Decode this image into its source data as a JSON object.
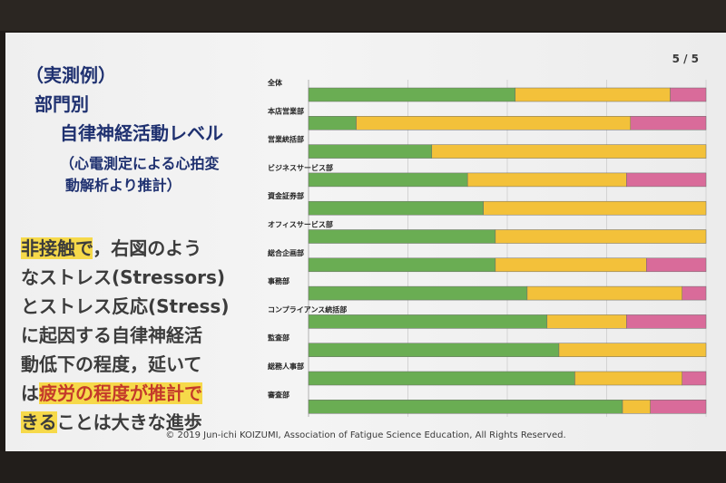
{
  "slide": {
    "page_number": "5 / 5",
    "title_lines": [
      "（実測例）",
      "部門別",
      "自律神経活動レベル",
      "（心電測定による心拍変",
      "動解析より推計）"
    ],
    "body_lines": [
      {
        "a": "非接触で",
        "b": "，右図のよう"
      },
      {
        "a": "なストレス(Stressors)"
      },
      {
        "a": "とストレス反応(Stress)"
      },
      {
        "a": "に起因する自律神経活"
      },
      {
        "a": "動低下の程度，延いて"
      },
      {
        "a": "は",
        "b": "疲労の程度が推計で"
      },
      {
        "a": "きる",
        "b": "ことは大きな進歩"
      }
    ],
    "copyright": "© 2019 Jun-ichi KOIZUMI, Association of Fatigue Science Education, All Rights Reserved."
  },
  "colors": {
    "green": "#6aad53",
    "yellow": "#f3c13a",
    "pink": "#d96b9a"
  },
  "chart_data": {
    "type": "bar",
    "orientation": "horizontal-stacked-100",
    "categories": [
      "全体",
      "本店営業部",
      "営業統括部",
      "ビジネスサービス部",
      "資金証券部",
      "オフィスサービス部",
      "総合企画部",
      "事務部",
      "コンプライアンス統括部",
      "監査部",
      "総務人事部",
      "審査部"
    ],
    "series": [
      {
        "name": "green",
        "values": [
          52,
          12,
          31,
          40,
          44,
          47,
          47,
          55,
          60,
          63,
          67,
          79
        ]
      },
      {
        "name": "yellow",
        "values": [
          39,
          69,
          69,
          40,
          56,
          53,
          38,
          39,
          20,
          37,
          27,
          7
        ]
      },
      {
        "name": "pink",
        "values": [
          9,
          19,
          0,
          20,
          0,
          0,
          15,
          6,
          20,
          0,
          6,
          14
        ]
      }
    ],
    "xlim": [
      0,
      100
    ]
  }
}
